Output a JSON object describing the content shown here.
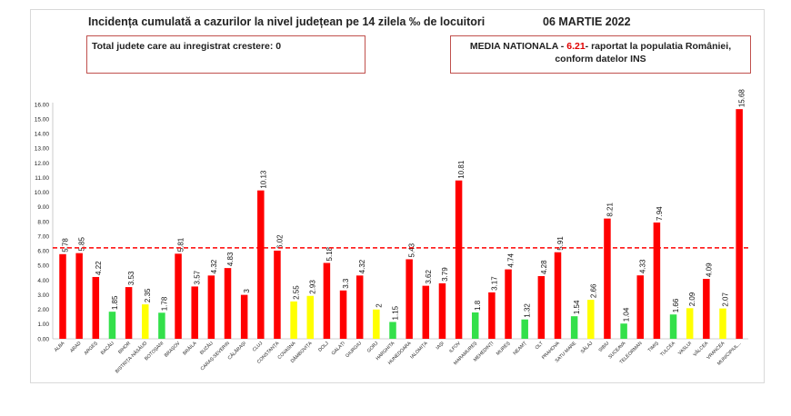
{
  "header": {
    "title": "Incidența cumulată a cazurilor la nivel județean pe 14 zilela ‰ de locuitori",
    "date": "06 MARTIE 2022"
  },
  "box_left": {
    "text": "Total judete care au inregistrat crestere: 0"
  },
  "box_right": {
    "line1_prefix": "MEDIA NATIONALA - ",
    "line1_value": "6.21",
    "line1_suffix": "-  raportat la populatia României,",
    "line2": "conform datelor INS"
  },
  "chart_data": {
    "type": "bar",
    "categories": [
      "ALBA",
      "ARAD",
      "ARGEȘ",
      "BACĂU",
      "BIHOR",
      "BISTRIȚA-NĂSĂUD",
      "BOTOȘANI",
      "BRAȘOV",
      "BRĂILA",
      "BUZĂU",
      "CARAȘ-SEVERIN",
      "CĂLĂRAȘI",
      "CLUJ",
      "CONSTANȚA",
      "COVASNA",
      "DÂMBOVIȚA",
      "DOLJ",
      "GALAȚI",
      "GIURGIU",
      "GORJ",
      "HARGHITA",
      "HUNEDOARA",
      "IALOMIȚA",
      "IAȘI",
      "ILFOV",
      "MARAMUREȘ",
      "MEHEDINȚI",
      "MUREȘ",
      "NEAMȚ",
      "OLT",
      "PRAHOVA",
      "SATU MARE",
      "SĂLAJ",
      "SIBIU",
      "SUCEAVA",
      "TELEORMAN",
      "TIMIȘ",
      "TULCEA",
      "VASLUI",
      "VÂLCEA",
      "VRANCEA",
      "MUNICIPIUL..."
    ],
    "values": [
      5.78,
      5.85,
      4.22,
      1.85,
      3.53,
      2.35,
      1.78,
      5.81,
      3.57,
      4.32,
      4.83,
      3,
      10.13,
      6.02,
      2.55,
      2.93,
      5.18,
      3.3,
      4.32,
      2,
      1.15,
      5.43,
      3.62,
      3.79,
      10.81,
      1.8,
      3.17,
      4.74,
      1.32,
      4.28,
      5.91,
      1.54,
      2.66,
      8.21,
      1.04,
      4.33,
      7.94,
      1.66,
      2.09,
      4.09,
      2.07,
      15.68
    ],
    "value_labels": [
      "5.78",
      "5.85",
      "4.22",
      "1.85",
      "3.53",
      "2.35",
      "1.78",
      "5.81",
      "3.57",
      "4.32",
      "4.83",
      "3",
      "10.13",
      "6.02",
      "2.55",
      "2.93",
      "5.18",
      "3.3",
      "4.32",
      "2",
      "1.15",
      "5.43",
      "3.62",
      "3.79",
      "10.81",
      "1.8",
      "3.17",
      "4.74",
      "1.32",
      "4.28",
      "5.91",
      "1.54",
      "2.66",
      "8.21",
      "1.04",
      "4.33",
      "7.94",
      "1.66",
      "2.09",
      "4.09",
      "2.07",
      "15.68"
    ],
    "bar_colors": [
      "red",
      "red",
      "red",
      "green",
      "red",
      "yellow",
      "green",
      "red",
      "red",
      "red",
      "red",
      "red",
      "red",
      "red",
      "yellow",
      "yellow",
      "red",
      "red",
      "red",
      "yellow",
      "green",
      "red",
      "red",
      "red",
      "red",
      "green",
      "red",
      "red",
      "green",
      "red",
      "red",
      "green",
      "yellow",
      "red",
      "green",
      "red",
      "red",
      "green",
      "yellow",
      "red",
      "yellow",
      "red"
    ],
    "palette": {
      "red": "#ff0000",
      "yellow": "#ffff00",
      "green": "#33e04a"
    },
    "reference_line": {
      "value": 6.21,
      "color": "#ff0000",
      "style": "dashed"
    },
    "yticks": [
      "0.00",
      "1.00",
      "2.00",
      "3.00",
      "4.00",
      "5.00",
      "6.00",
      "7.00",
      "8.00",
      "9.00",
      "10.00",
      "11.00",
      "12.00",
      "13.00",
      "14.00",
      "15.00",
      "16.00"
    ],
    "ylim": [
      0,
      16
    ],
    "grid": false,
    "title": "Incidența cumulată a cazurilor la nivel județean pe 14 zilela ‰ de locuitori"
  }
}
